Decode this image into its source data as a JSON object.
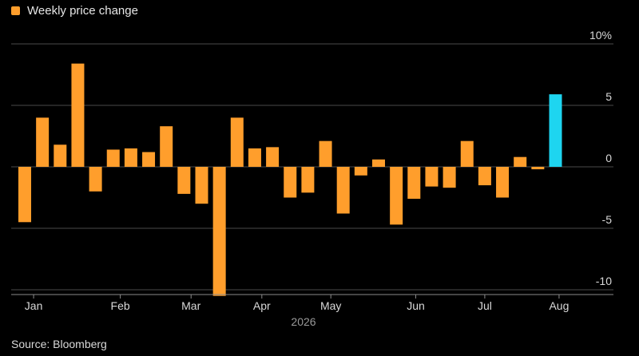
{
  "legend": {
    "label": "Weekly price change"
  },
  "source": "Source: Bloomberg",
  "colors": {
    "positive_bar": "#ff9e2c",
    "highlight_bar": "#1ed5f0",
    "grid": "#4a4a4a",
    "text": "#d9d9d9",
    "background": "#000000"
  },
  "chart_data": {
    "type": "bar",
    "title": "",
    "series": [
      {
        "name": "Weekly price change",
        "values": [
          -4.5,
          4.0,
          1.8,
          8.4,
          -2.0,
          1.4,
          1.5,
          1.2,
          3.3,
          -2.2,
          -3.0,
          -10.5,
          4.0,
          1.5,
          1.6,
          -2.5,
          -2.1,
          2.1,
          -3.8,
          -0.7,
          0.6,
          -4.7,
          -2.6,
          -1.6,
          -1.7,
          2.1,
          -1.5,
          -2.5,
          0.8,
          -0.2,
          5.9
        ]
      }
    ],
    "highlight_index": 30,
    "x_axis": {
      "labels": [
        "Jan",
        "Feb",
        "Mar",
        "Apr",
        "May",
        "Jun",
        "Jul",
        "Aug"
      ],
      "label_week_index": [
        0.5,
        5.4,
        9.4,
        13.4,
        17.3,
        22.1,
        26.0,
        30.2
      ],
      "year_label": "2026"
    },
    "y_axis": {
      "ticks": [
        10,
        5,
        0,
        -5,
        -10
      ],
      "tick_labels": [
        "10%",
        "5",
        "0",
        "-5",
        "-10"
      ],
      "ylim": [
        -10.6,
        10
      ],
      "position": "right"
    },
    "grid": true
  }
}
